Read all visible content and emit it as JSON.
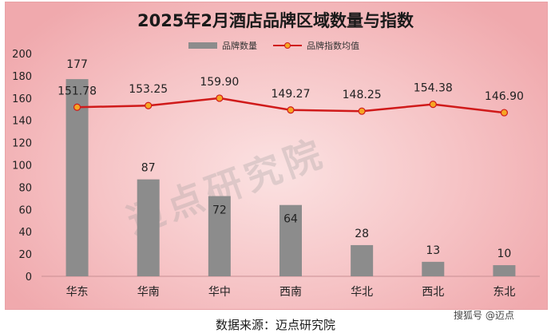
{
  "title": "2025年2月酒店品牌区域数量与指数",
  "source_text": "数据来源：迈点研究院",
  "brand_text": "搜狐号 @迈点",
  "watermark": "迈点研究院",
  "colors": {
    "bar": "#8c8c8c",
    "line": "#d01a1a",
    "marker_fill": "#f5a623"
  },
  "chart_data": {
    "type": "bar",
    "title": "2025年2月酒店品牌区域数量与指数",
    "categories": [
      "华东",
      "华南",
      "华中",
      "西南",
      "华北",
      "西北",
      "东北"
    ],
    "series": [
      {
        "name": "品牌数量",
        "type": "bar",
        "values": [
          177,
          87,
          72,
          64,
          28,
          13,
          10
        ]
      },
      {
        "name": "品牌指数均值",
        "type": "line",
        "values": [
          151.78,
          153.25,
          159.9,
          149.27,
          148.25,
          154.38,
          146.9
        ]
      }
    ],
    "value_labels": {
      "bars": [
        "177",
        "87",
        "72",
        "64",
        "28",
        "13",
        "10"
      ],
      "line": [
        "151.78",
        "153.25",
        "159.90",
        "149.27",
        "148.25",
        "154.38",
        "146.90"
      ]
    },
    "yticks": [
      "0",
      "20",
      "40",
      "60",
      "80",
      "100",
      "120",
      "140",
      "160",
      "180",
      "200"
    ],
    "ylim": [
      0,
      200
    ],
    "legend_position": "top-center",
    "grid": false
  }
}
